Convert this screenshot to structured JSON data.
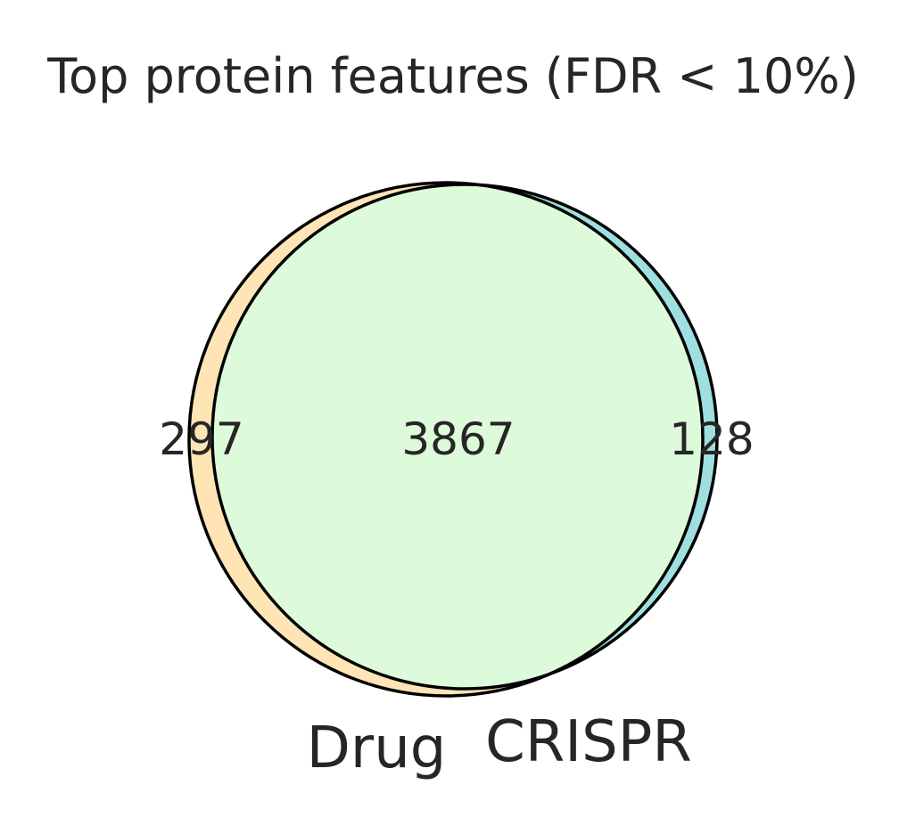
{
  "title": "Top protein features (FDR < 10%)",
  "sets": [
    {
      "name": "Drug",
      "color": "#ffe4b5"
    },
    {
      "name": "CRISPR",
      "color": "#9fdfe0"
    }
  ],
  "regions": {
    "drug_only": "297",
    "intersection": "3867",
    "crispr_only": "128"
  },
  "colors": {
    "overlap": "#ddfadb",
    "outline": "#000000",
    "text": "#262626"
  }
}
